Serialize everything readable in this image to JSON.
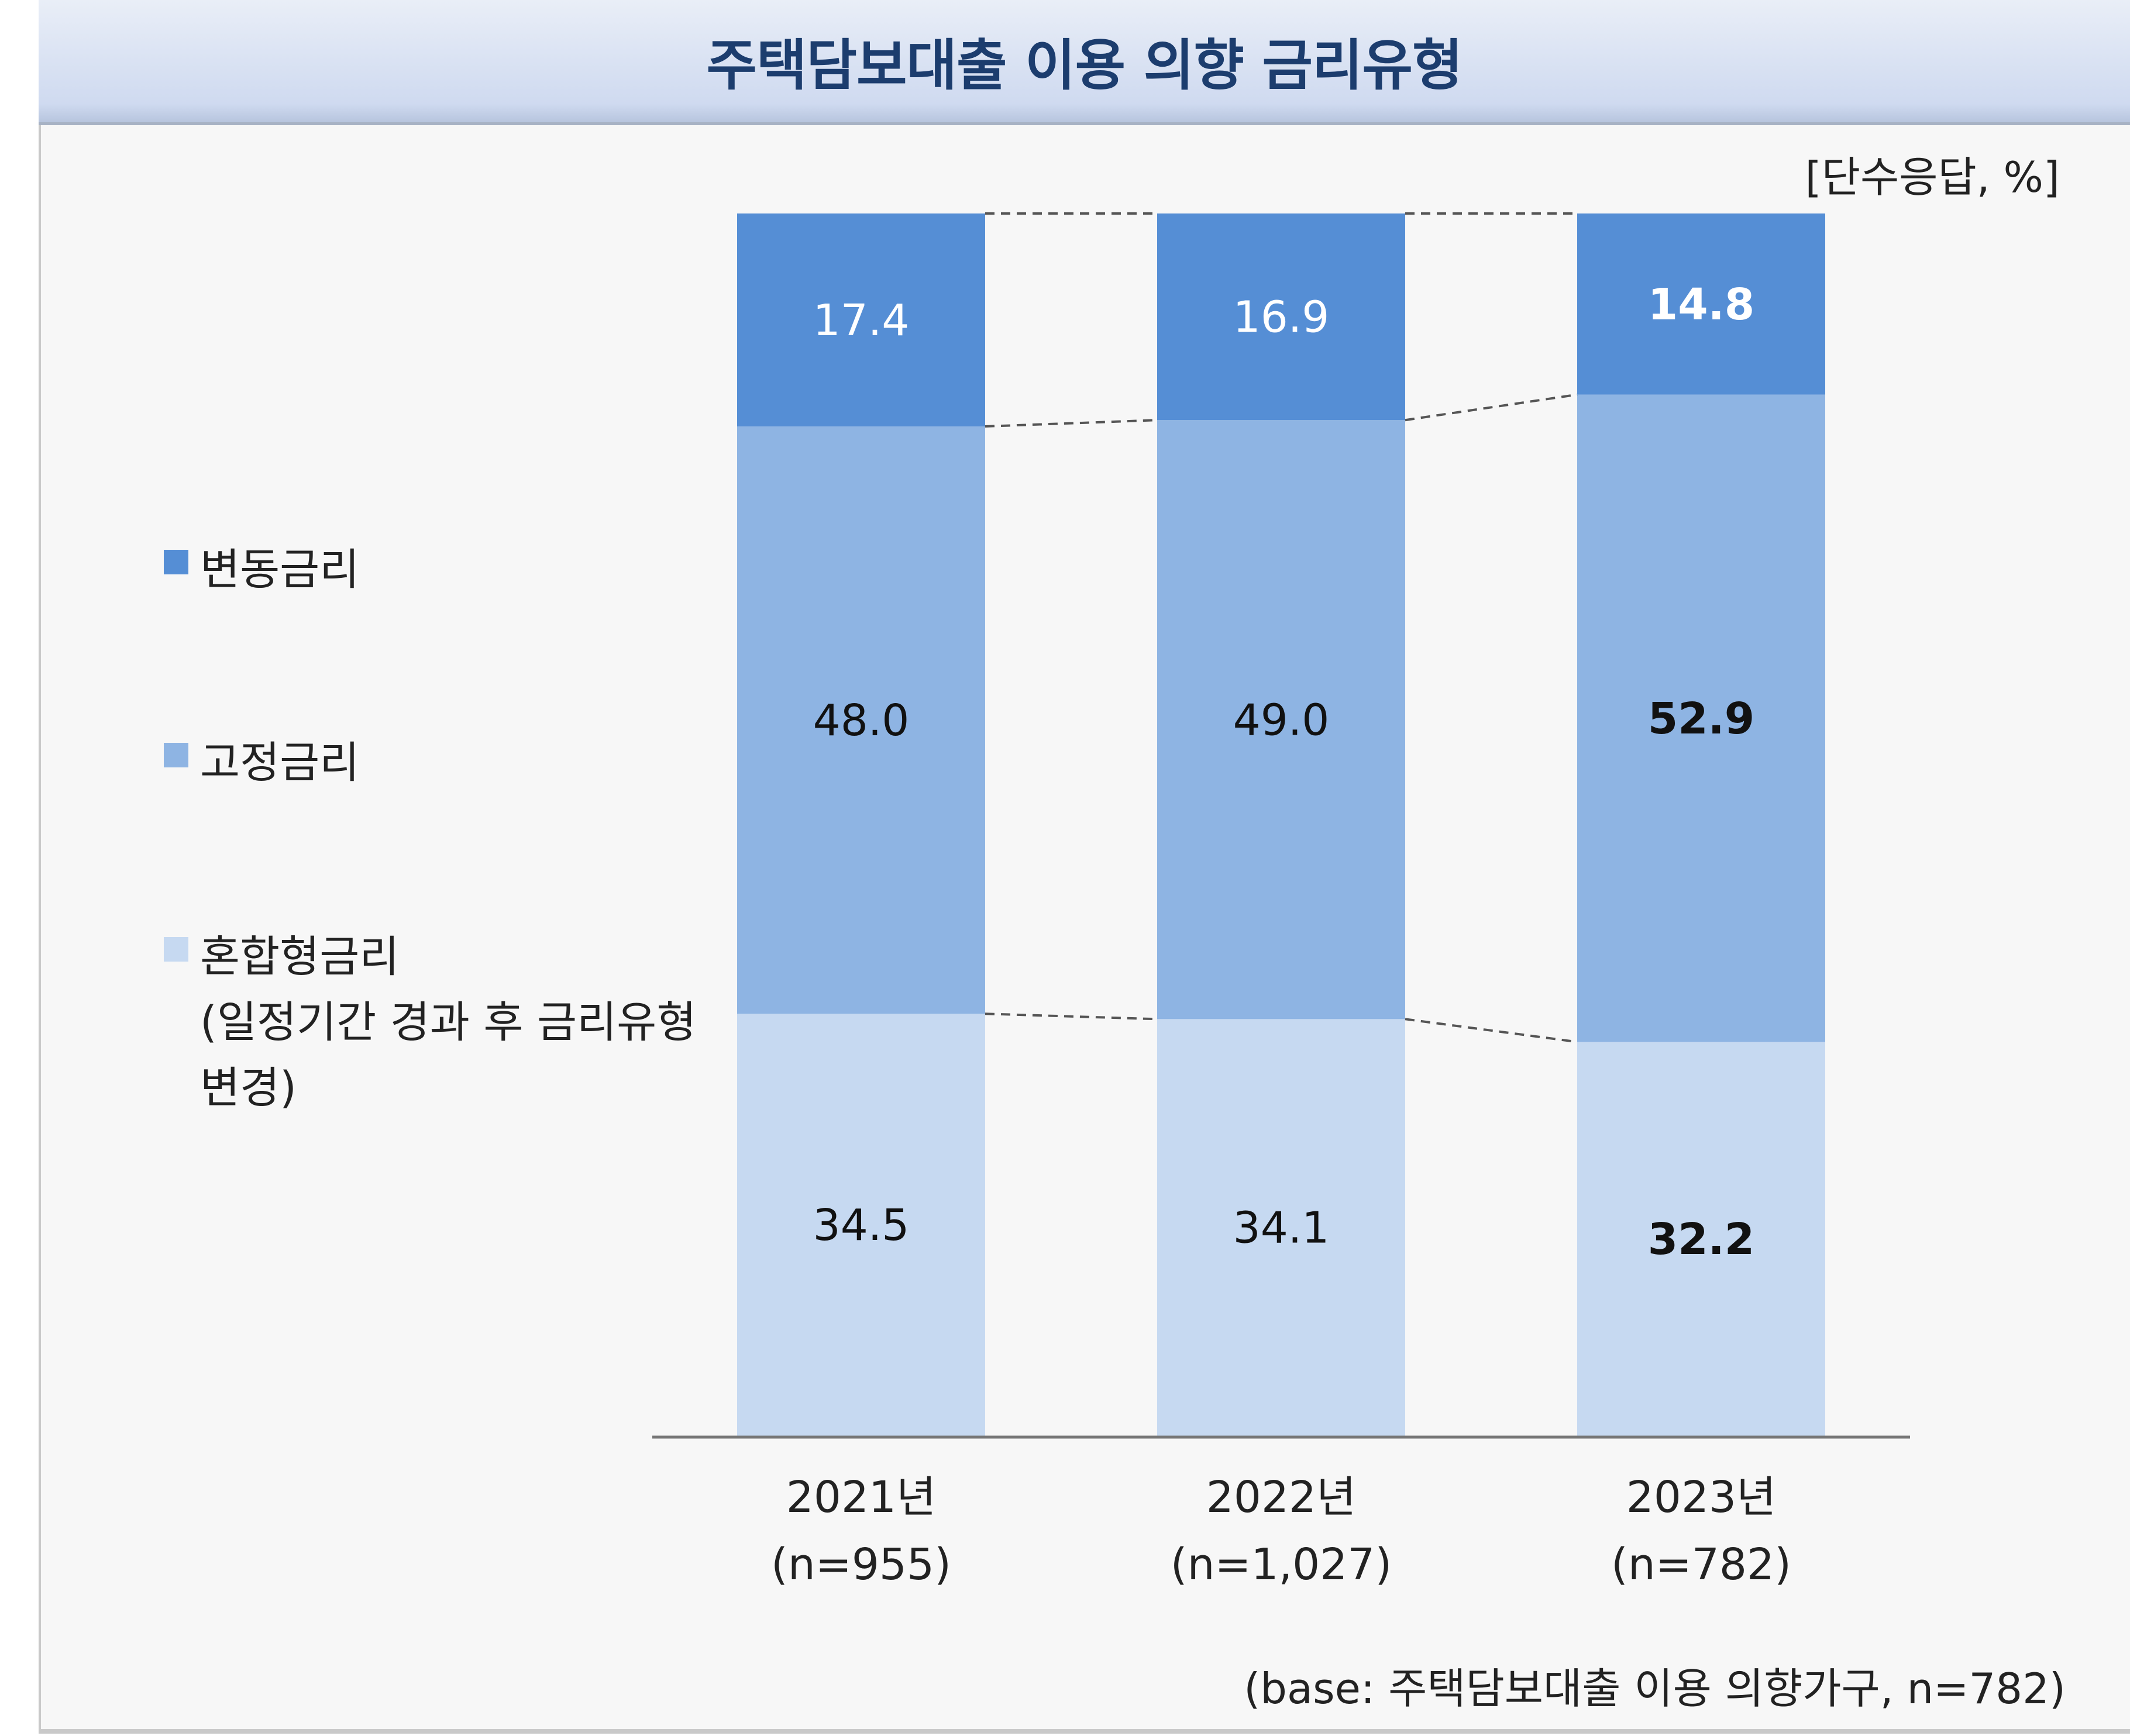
{
  "title": "주택담보대출 이용 의향 금리유형",
  "unit_label": "[단수응답, %]",
  "base_note": "(base: 주택담보대출 이용 의향가구, n=782)",
  "legend": [
    {
      "label": "변동금리",
      "color": "#558ed5"
    },
    {
      "label": "고정금리",
      "color": "#8eb4e3"
    },
    {
      "label": "혼합형금리",
      "sub1": "(일정기간 경과 후 금리유형",
      "sub2": "변경)",
      "color": "#c6d9f1"
    }
  ],
  "chart_data": {
    "type": "bar",
    "stacked": true,
    "orientation": "vertical",
    "categories": [
      {
        "year": "2021년",
        "n": "(n=955)"
      },
      {
        "year": "2022년",
        "n": "(n=1,027)"
      },
      {
        "year": "2023년",
        "n": "(n=782)"
      }
    ],
    "series": [
      {
        "name": "혼합형금리",
        "color": "#c6d9f1",
        "values": [
          34.5,
          34.1,
          32.2
        ],
        "labels": [
          "34.5",
          "34.1",
          "32.2"
        ]
      },
      {
        "name": "고정금리",
        "color": "#8eb4e3",
        "values": [
          48.0,
          49.0,
          52.9
        ],
        "labels": [
          "48.0",
          "49.0",
          "52.9"
        ]
      },
      {
        "name": "변동금리",
        "color": "#558ed5",
        "values": [
          17.4,
          16.9,
          14.8
        ],
        "labels": [
          "17.4",
          "16.9",
          "14.8"
        ]
      }
    ],
    "ylim": [
      0,
      100
    ],
    "highlight_last_category": true,
    "connector_lines": "dashed"
  }
}
